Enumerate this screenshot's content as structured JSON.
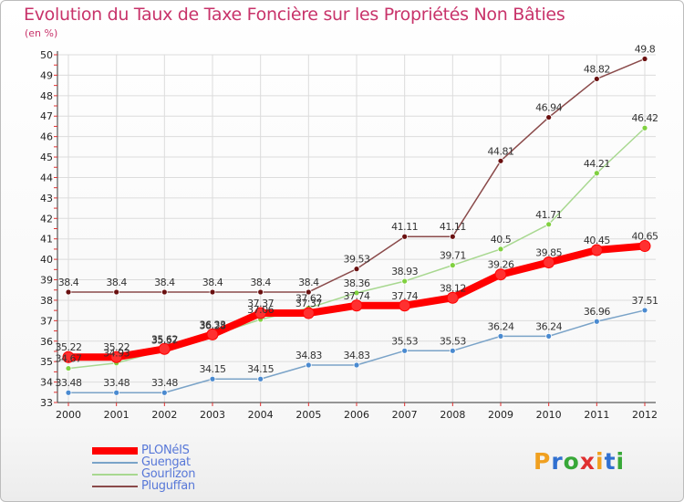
{
  "header": {
    "title": "Evolution du Taux de Taxe Foncière sur les Propriétés Non Bâties",
    "unit": "(en %)"
  },
  "logo": {
    "text": "Proxiti",
    "colors": [
      "#f0a020",
      "#3070d0",
      "#38a838",
      "#e03030",
      "#f0a020",
      "#3070d0",
      "#38a838"
    ]
  },
  "chart_data": {
    "type": "line",
    "title": "Evolution du Taux de Taxe Foncière sur les Propriétés Non Bâties",
    "ylabel": "(en %)",
    "x": [
      "2000",
      "2001",
      "2002",
      "2003",
      "2004",
      "2005",
      "2006",
      "2007",
      "2008",
      "2009",
      "2010",
      "2011",
      "2012"
    ],
    "ylim": [
      33,
      50
    ],
    "yticks": [
      33,
      34,
      35,
      36,
      37,
      38,
      39,
      40,
      41,
      42,
      43,
      44,
      45,
      46,
      47,
      48,
      49,
      50
    ],
    "grid": true,
    "legend_position": "bottom-left",
    "series": [
      {
        "name": "PLONéIS",
        "color": "#ff0000",
        "marker": "#ff3030",
        "values": [
          35.22,
          35.22,
          35.62,
          36.33,
          37.37,
          37.37,
          37.74,
          37.74,
          38.12,
          39.26,
          39.85,
          40.45,
          40.65
        ],
        "labels": [
          "35.22",
          "35.22",
          "35.62",
          "36.33",
          "37.37",
          "37.37",
          "37.74",
          "37.74",
          "38.12",
          "39.26",
          "39.85",
          "40.45",
          "40.65"
        ]
      },
      {
        "name": "Guengat",
        "color": "#7aa3c8",
        "marker": "#4a8ad0",
        "values": [
          33.48,
          33.48,
          33.48,
          34.15,
          34.15,
          34.83,
          34.83,
          35.53,
          35.53,
          36.24,
          36.24,
          36.96,
          37.51
        ],
        "labels": [
          "33.48",
          "33.48",
          "33.48",
          "34.15",
          "34.15",
          "34.83",
          "34.83",
          "35.53",
          "35.53",
          "36.24",
          "36.24",
          "36.96",
          "37.51"
        ]
      },
      {
        "name": "Gourlizon",
        "color": "#a8d890",
        "marker": "#80d040",
        "values": [
          34.67,
          34.93,
          35.57,
          36.28,
          37.06,
          37.62,
          38.36,
          38.93,
          39.71,
          40.5,
          41.71,
          44.21,
          46.42
        ],
        "labels": [
          "34.67",
          "34.93",
          "35.57",
          "36.28",
          "37.06",
          "37.62",
          "38.36",
          "38.93",
          "39.71",
          "40.5",
          "41.71",
          "44.21",
          "46.42"
        ]
      },
      {
        "name": "Pluguffan",
        "color": "#8a4a4a",
        "marker": "#6a1010",
        "values": [
          38.4,
          38.4,
          38.4,
          38.4,
          38.4,
          38.4,
          39.53,
          41.11,
          41.11,
          44.81,
          46.94,
          48.82,
          49.8
        ],
        "labels": [
          "38.4",
          "38.4",
          "38.4",
          "38.4",
          "38.4",
          "38.4",
          "39.53",
          "41.11",
          "41.11",
          "44.81",
          "46.94",
          "48.82",
          "49.8"
        ]
      }
    ]
  }
}
